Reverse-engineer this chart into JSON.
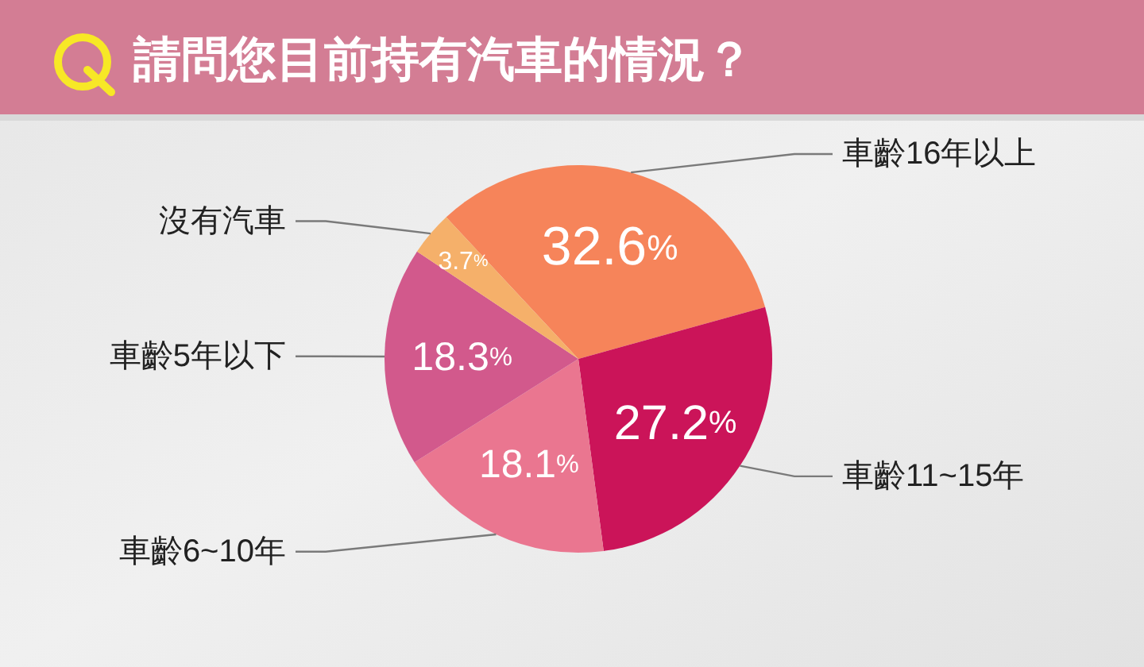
{
  "chart_data": {
    "type": "pie",
    "title": "請問您目前持有汽車的情況？",
    "categories": [
      "車齡16年以上",
      "車齡11~15年",
      "車齡6~10年",
      "車齡5年以下",
      "沒有汽車"
    ],
    "values": [
      32.6,
      27.2,
      18.1,
      18.3,
      3.7
    ],
    "colors": [
      "#f6845a",
      "#cb1459",
      "#ea7690",
      "#d2598c",
      "#f5b06a"
    ],
    "value_labels": [
      "32.6%",
      "27.2%",
      "18.1%",
      "18.3%",
      "3.7%"
    ]
  }
}
